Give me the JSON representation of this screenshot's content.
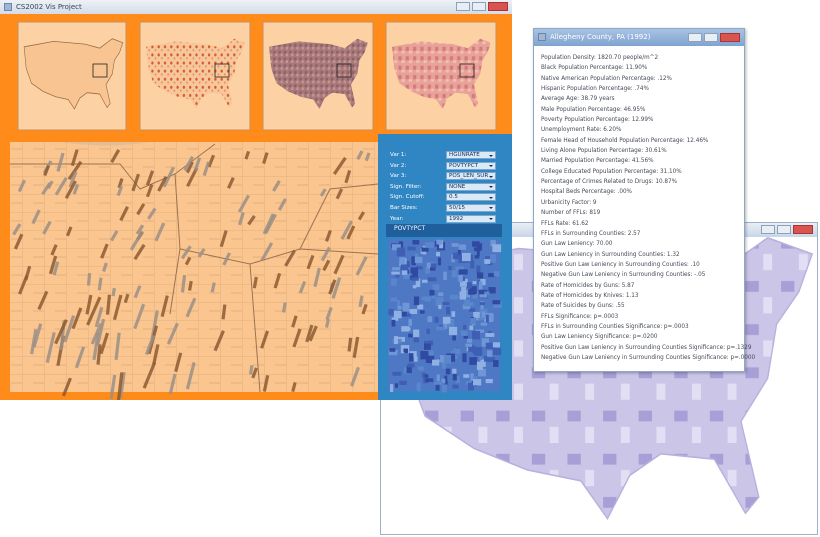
{
  "main_window": {
    "title": "CS2002 Vis Project"
  },
  "controls": [
    {
      "label": "Var 1:",
      "value": "HGUNRATE"
    },
    {
      "label": "Var 2:",
      "value": "POVTYPCT"
    },
    {
      "label": "Var 3:",
      "value": "POS_LEN_SUR"
    },
    {
      "label": "Sign. Filter:",
      "value": "NONE"
    },
    {
      "label": "Sign. Cutoff:",
      "value": "0.5"
    },
    {
      "label": "Bar Sizes:",
      "value": "50/15"
    },
    {
      "label": "Year:",
      "value": "1992"
    }
  ],
  "variable_panel": {
    "title": "POVTYPCT"
  },
  "info_window": {
    "title": "Allegheny County, PA (1992)",
    "lines": [
      "Population Density: 1820.70 people/m^2",
      "Black Population Percentage: 11.90%",
      "Native American Population Percentage: .12%",
      "Hispanic Population Percentage: .74%",
      "Average Age: 38.79 years",
      "Male Population Percentage: 46.95%",
      "Poverty Population Percentage: 12.99%",
      "Unemployment Rate: 6.20%",
      "Female Head of Household Population Percentage: 12.46%",
      "Living Alone Population Percentage: 30.61%",
      "Married Population Percentage: 41.56%",
      "College Educated Population Percentage: 31.10%",
      "Percentage of Crimes Related to Drugs: 10.87%",
      "Hospital Beds Percentage: .00%",
      "Urbanicity Factor: 9",
      "Number of FFLs: 819",
      "FFLs Rate: 61.62",
      "FFLs in Surrounding Counties: 2.57",
      "Gun Law Leniency: 70.00",
      "Gun Law Leniency in Surrounding Counties: 1.32",
      "Positive Gun Law Leniency in Surrounding Counties: .10",
      "Negative Gun Law Leniency in Surrounding Counties: -.05",
      "Rate of Homicides by Guns: 5.87",
      "Rate of Homicides by Knives: 1.13",
      "Rate of Suicides by Guns: .55",
      "FFLs Significance: p=.0003",
      "FFLs in Surrounding Counties Significance: p=.0003",
      "Gun Law Leniency Significance: p=.0200",
      "Positive Gun Law Leniency in Surrounding Counties Significance: p=.1329",
      "Negative Gun Law Leniency in Surrounding Counties Significance: p=.0000"
    ]
  }
}
